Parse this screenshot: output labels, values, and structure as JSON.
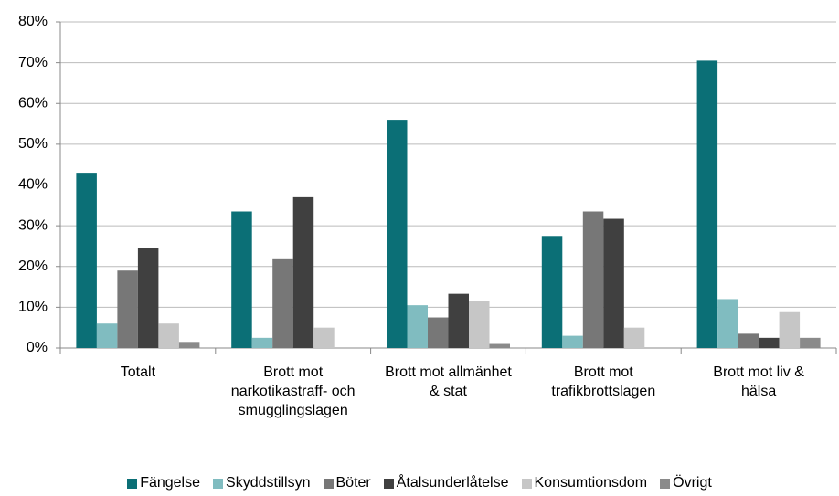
{
  "chart_data": {
    "type": "bar",
    "categories": [
      "Totalt",
      "Brott mot narkotikastraff- och smugglingslagen",
      "Brott mot allmänhet & stat",
      "Brott mot trafikbrottslagen",
      "Brott mot liv & hälsa"
    ],
    "series": [
      {
        "name": "Fängelse",
        "color": "#0b6f76",
        "values": [
          43,
          33.5,
          56,
          27.5,
          70.5
        ]
      },
      {
        "name": "Skyddstillsyn",
        "color": "#80bcc0",
        "values": [
          6,
          2.5,
          10.5,
          3,
          12
        ]
      },
      {
        "name": "Böter",
        "color": "#777777",
        "values": [
          19,
          22,
          7.5,
          33.5,
          3.5
        ]
      },
      {
        "name": "Åtalsunderlåtelse",
        "color": "#404040",
        "values": [
          24.5,
          37,
          13.3,
          31.7,
          2.5
        ]
      },
      {
        "name": "Konsumtionsdom",
        "color": "#c6c6c6",
        "values": [
          6,
          5,
          11.5,
          5,
          8.8
        ]
      },
      {
        "name": "Övrigt",
        "color": "#8a8a8a",
        "values": [
          1.5,
          0,
          1,
          0,
          2.5
        ]
      }
    ],
    "ylim": [
      0,
      80
    ],
    "yticks": [
      {
        "value": 0,
        "label": "0%"
      },
      {
        "value": 10,
        "label": "10%"
      },
      {
        "value": 20,
        "label": "20%"
      },
      {
        "value": 30,
        "label": "30%"
      },
      {
        "value": 40,
        "label": "40%"
      },
      {
        "value": 50,
        "label": "50%"
      },
      {
        "value": 60,
        "label": "60%"
      },
      {
        "value": 70,
        "label": "70%"
      },
      {
        "value": 80,
        "label": "80%"
      }
    ],
    "grid": true,
    "legend": "bottom"
  }
}
